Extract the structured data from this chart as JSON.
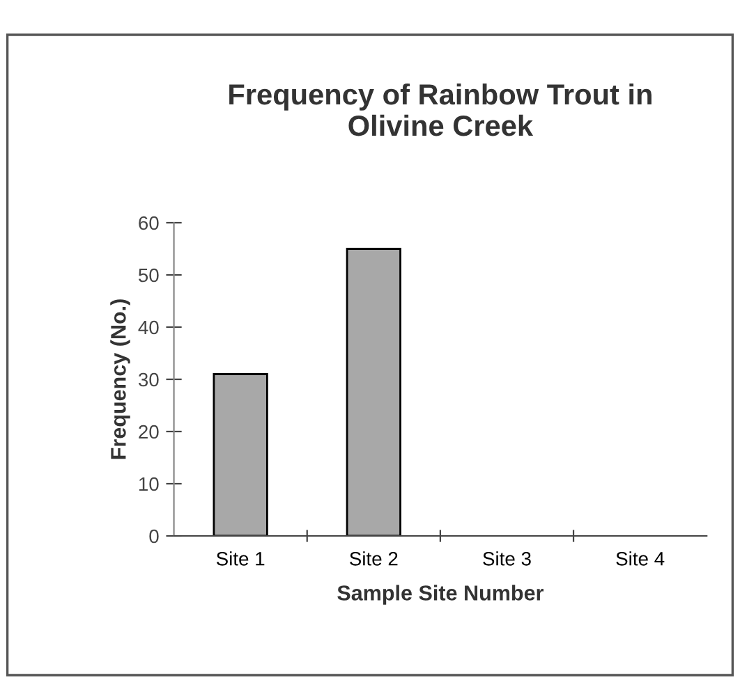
{
  "chart_data": {
    "type": "bar",
    "title": "Frequency of Rainbow Trout in\nOlivine Creek",
    "xlabel": "Sample Site Number",
    "ylabel": "Frequency (No.)",
    "categories": [
      "Site 1",
      "Site 2",
      "Site 3",
      "Site 4"
    ],
    "values": [
      31,
      55,
      0,
      0
    ],
    "color": "#a8a8a8",
    "ylim": [
      0,
      60
    ],
    "yticks": [
      0,
      10,
      20,
      30,
      40,
      50,
      60
    ],
    "grid": false,
    "legend": false
  }
}
